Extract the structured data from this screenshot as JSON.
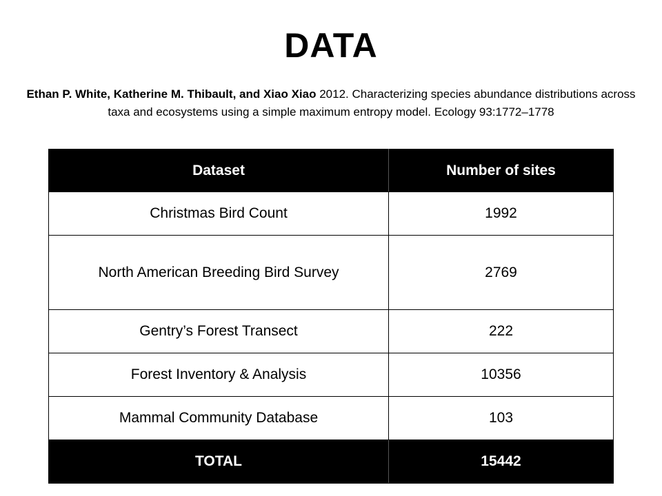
{
  "title": "DATA",
  "citation": {
    "authors": "Ethan P. White, Katherine M. Thibault, and Xiao Xiao",
    "rest": " 2012. Characterizing species abundance distributions across taxa and ecosystems using a simple maximum entropy model. Ecology 93:1772–1778"
  },
  "table": {
    "headers": [
      "Dataset",
      "Number of sites"
    ],
    "rows": [
      [
        "Christmas Bird Count",
        "1992"
      ],
      [
        "North American Breeding Bird Survey",
        "2769"
      ],
      [
        "Gentry’s Forest Transect",
        "222"
      ],
      [
        "Forest Inventory & Analysis",
        "10356"
      ],
      [
        "Mammal Community Database",
        "103"
      ]
    ],
    "total": [
      "TOTAL",
      "15442"
    ]
  },
  "colors": {
    "header_bg": "#000000",
    "header_text": "#ffffff",
    "body_bg": "#ffffff",
    "text": "#000000"
  }
}
